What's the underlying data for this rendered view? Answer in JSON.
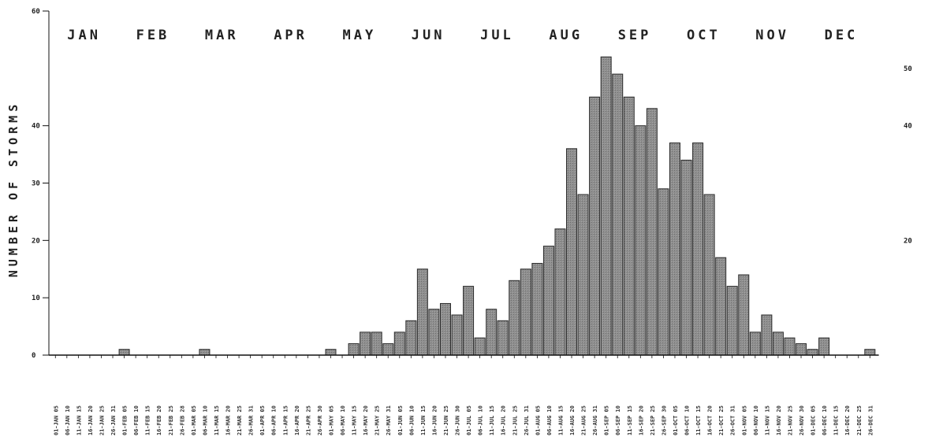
{
  "chart_data": {
    "type": "bar",
    "title": "",
    "ylabel": "NUMBER OF STORMS",
    "ylim": [
      0,
      60
    ],
    "left_ticks": [
      "0",
      "10",
      "20",
      "30",
      "40",
      "60"
    ],
    "left_tick_values": [
      0,
      10,
      20,
      30,
      40,
      60
    ],
    "right_ticks": [
      "20",
      "40",
      "50"
    ],
    "right_tick_values": [
      20,
      40,
      50
    ],
    "months": [
      "JAN",
      "FEB",
      "MAR",
      "APR",
      "MAY",
      "JUN",
      "JUL",
      "AUG",
      "SEP",
      "OCT",
      "NOV",
      "DEC"
    ],
    "categories": [
      "01-JAN 05",
      "06-JAN 10",
      "11-JAN 15",
      "16-JAN 20",
      "21-JAN 25",
      "26-JAN 31",
      "01-FEB 05",
      "06-FEB 10",
      "11-FEB 15",
      "16-FEB 20",
      "21-FEB 25",
      "26-FEB 28",
      "01-MAR 05",
      "06-MAR 10",
      "11-MAR 15",
      "16-MAR 20",
      "21-MAR 25",
      "26-MAR 31",
      "01-APR 05",
      "06-APR 10",
      "11-APR 15",
      "16-APR 20",
      "21-APR 25",
      "26-APR 30",
      "01-MAY 05",
      "06-MAY 10",
      "11-MAY 15",
      "16-MAY 20",
      "21-MAY 25",
      "26-MAY 31",
      "01-JUN 05",
      "06-JUN 10",
      "11-JUN 15",
      "16-JUN 20",
      "21-JUN 25",
      "26-JUN 30",
      "01-JUL 05",
      "06-JUL 10",
      "11-JUL 15",
      "16-JUL 20",
      "21-JUL 25",
      "26-JUL 31",
      "01-AUG 05",
      "06-AUG 10",
      "11-AUG 15",
      "16-AUG 20",
      "21-AUG 25",
      "26-AUG 31",
      "01-SEP 05",
      "06-SEP 10",
      "11-SEP 15",
      "16-SEP 20",
      "21-SEP 25",
      "26-SEP 30",
      "01-OCT 05",
      "06-OCT 10",
      "11-OCT 15",
      "16-OCT 20",
      "21-OCT 25",
      "26-OCT 31",
      "01-NOV 05",
      "06-NOV 10",
      "11-NOV 15",
      "16-NOV 20",
      "21-NOV 25",
      "26-NOV 30",
      "01-DEC 05",
      "06-DEC 10",
      "11-DEC 15",
      "16-DEC 20",
      "21-DEC 25",
      "26-DEC 31"
    ],
    "values": [
      0,
      0,
      0,
      0,
      0,
      0,
      1,
      0,
      0,
      0,
      0,
      0,
      0,
      1,
      0,
      0,
      0,
      0,
      0,
      0,
      0,
      0,
      0,
      0,
      1,
      0,
      2,
      4,
      4,
      2,
      4,
      6,
      15,
      8,
      9,
      7,
      12,
      3,
      8,
      6,
      13,
      15,
      16,
      19,
      22,
      36,
      28,
      45,
      52,
      49,
      45,
      40,
      43,
      29,
      37,
      34,
      37,
      28,
      17,
      12,
      14,
      4,
      7,
      4,
      3,
      2,
      1,
      3,
      0,
      0,
      0,
      1
    ],
    "colors": {
      "bar": "#8f8f8f",
      "bar_stroke": "#2a2a2a",
      "axis": "#111111"
    }
  }
}
